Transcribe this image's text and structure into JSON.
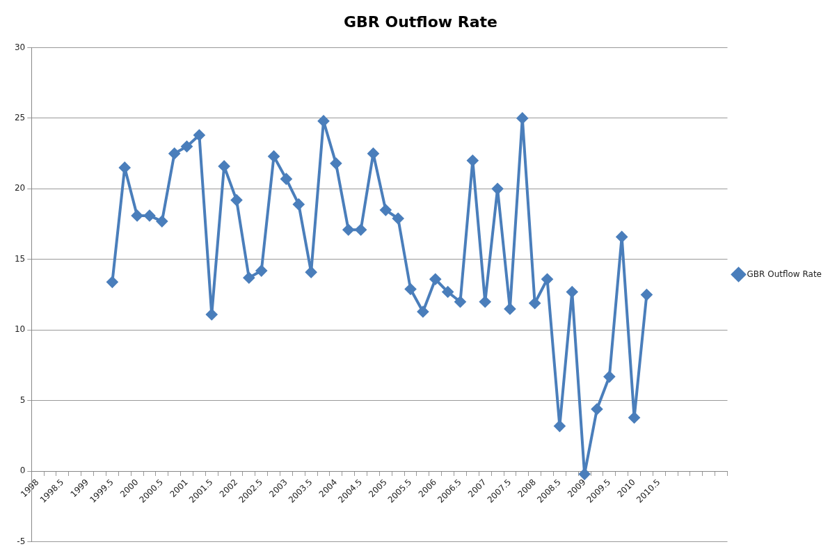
{
  "chart_data": {
    "type": "line",
    "title": "GBR Outflow Rate",
    "categories": [
      "1998",
      null,
      "1998.5",
      null,
      "1999",
      null,
      "1999.5",
      null,
      "2000",
      null,
      "2000.5",
      null,
      "2001",
      null,
      "2001.5",
      null,
      "2002",
      null,
      "2002.5",
      null,
      "2003",
      null,
      "2003.5",
      null,
      "2004",
      null,
      "2004.5",
      null,
      "2005",
      null,
      "2005.5",
      null,
      "2006",
      null,
      "2006.5",
      null,
      "2007",
      null,
      "2007.5",
      null,
      "2008",
      null,
      "2008.5",
      null,
      "2009",
      null,
      "2009.5",
      null,
      "2010",
      null,
      "2010.5",
      null,
      null,
      null,
      null,
      null
    ],
    "series": [
      {
        "name": "GBR Outflow Rate",
        "color": "#4a7ebb",
        "values": [
          null,
          null,
          null,
          null,
          null,
          null,
          13.4,
          21.5,
          18.1,
          18.1,
          17.7,
          22.5,
          23.0,
          23.8,
          11.1,
          21.6,
          19.2,
          13.7,
          14.2,
          22.3,
          20.7,
          18.9,
          14.1,
          24.8,
          21.8,
          17.1,
          17.1,
          22.5,
          18.5,
          17.9,
          12.9,
          11.3,
          13.6,
          12.7,
          12.0,
          22.0,
          12.0,
          20.0,
          11.5,
          25.0,
          11.9,
          13.6,
          3.2,
          12.7,
          -0.2,
          4.4,
          6.7,
          16.6,
          3.8,
          12.5,
          null,
          null,
          null,
          null,
          null,
          null
        ]
      }
    ],
    "ylim": [
      -5,
      30
    ],
    "yticks": [
      -5,
      0,
      5,
      10,
      15,
      20,
      25,
      30
    ],
    "grid": "y",
    "legend": "right",
    "marker": "diamond",
    "line_style": "solid"
  }
}
